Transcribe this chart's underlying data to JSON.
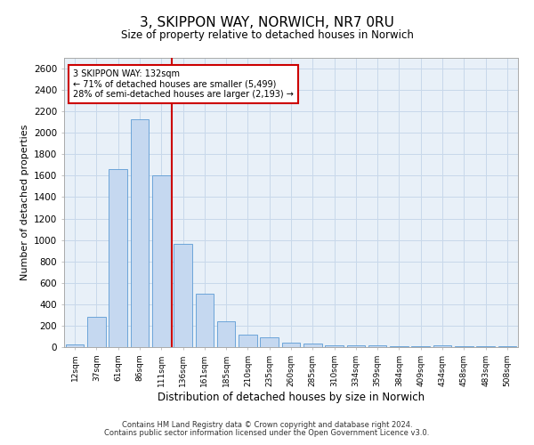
{
  "title_line1": "3, SKIPPON WAY, NORWICH, NR7 0RU",
  "title_line2": "Size of property relative to detached houses in Norwich",
  "xlabel": "Distribution of detached houses by size in Norwich",
  "ylabel": "Number of detached properties",
  "categories": [
    "12sqm",
    "37sqm",
    "61sqm",
    "86sqm",
    "111sqm",
    "136sqm",
    "161sqm",
    "185sqm",
    "210sqm",
    "235sqm",
    "260sqm",
    "285sqm",
    "310sqm",
    "334sqm",
    "359sqm",
    "384sqm",
    "409sqm",
    "434sqm",
    "458sqm",
    "483sqm",
    "508sqm"
  ],
  "values": [
    25,
    280,
    1660,
    2130,
    1600,
    960,
    500,
    245,
    120,
    95,
    40,
    35,
    20,
    20,
    15,
    5,
    5,
    15,
    5,
    5,
    5
  ],
  "bar_color": "#c5d8f0",
  "bar_edge_color": "#5b9bd5",
  "vline_x": 4.5,
  "vline_color": "#cc0000",
  "annotation_line1": "3 SKIPPON WAY: 132sqm",
  "annotation_line2": "← 71% of detached houses are smaller (5,499)",
  "annotation_line3": "28% of semi-detached houses are larger (2,193) →",
  "annotation_box_color": "#ffffff",
  "annotation_box_edge": "#cc0000",
  "ylim": [
    0,
    2700
  ],
  "yticks": [
    0,
    200,
    400,
    600,
    800,
    1000,
    1200,
    1400,
    1600,
    1800,
    2000,
    2200,
    2400,
    2600
  ],
  "grid_color": "#c8d8ea",
  "background_color": "#e8f0f8",
  "footer_line1": "Contains HM Land Registry data © Crown copyright and database right 2024.",
  "footer_line2": "Contains public sector information licensed under the Open Government Licence v3.0."
}
